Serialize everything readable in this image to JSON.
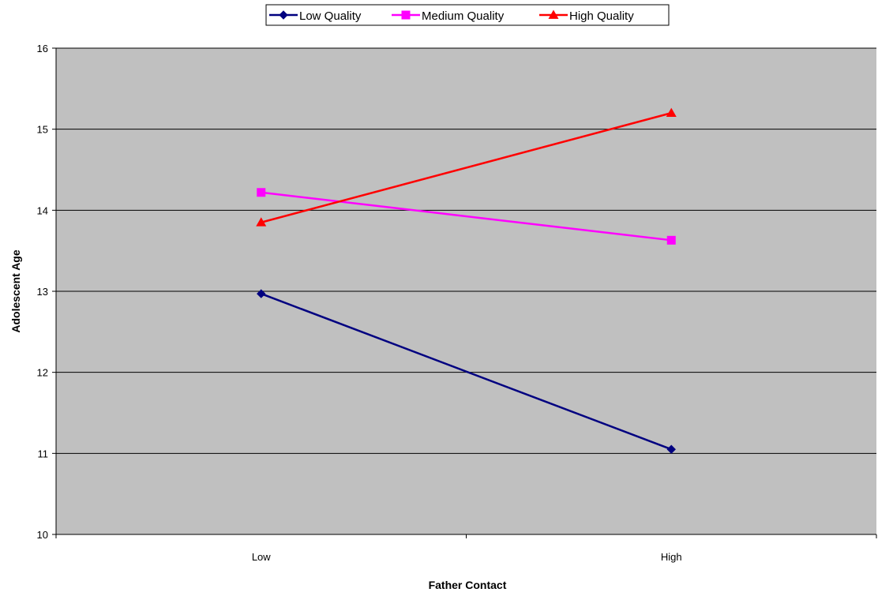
{
  "chart_data": {
    "type": "line",
    "title": "",
    "xlabel": "Father Contact",
    "ylabel": "Adolescent Age",
    "categories": [
      "Low",
      "High"
    ],
    "ylim": [
      10,
      16
    ],
    "yticks": [
      10,
      11,
      12,
      13,
      14,
      15,
      16
    ],
    "grid": true,
    "legend_position": "top",
    "plot_background": "#c0c0c0",
    "series": [
      {
        "name": "Low Quality",
        "values": [
          12.97,
          11.05
        ],
        "color": "#000080",
        "marker": "diamond"
      },
      {
        "name": "Medium Quality",
        "values": [
          14.22,
          13.63
        ],
        "color": "#ff00ff",
        "marker": "square"
      },
      {
        "name": "High Quality",
        "values": [
          13.85,
          15.2
        ],
        "color": "#ff0000",
        "marker": "triangle"
      }
    ]
  }
}
